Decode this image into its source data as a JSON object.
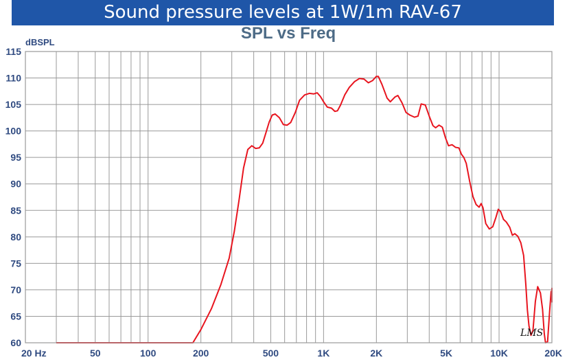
{
  "banner": {
    "title": "Sound pressure levels at 1W/1m RAV-67"
  },
  "chart_data": {
    "type": "line",
    "title": "SPL vs Freq",
    "ylabel": "dBSPL",
    "xlabel": "",
    "xscale": "log",
    "xlim": [
      20,
      20000
    ],
    "ylim": [
      60,
      115
    ],
    "grid": true,
    "x_ticks": [
      {
        "value": 20,
        "label": "20  Hz"
      },
      {
        "value": 50,
        "label": "50"
      },
      {
        "value": 100,
        "label": "100"
      },
      {
        "value": 200,
        "label": "200"
      },
      {
        "value": 500,
        "label": "500"
      },
      {
        "value": 1000,
        "label": "1K"
      },
      {
        "value": 2000,
        "label": "2K"
      },
      {
        "value": 5000,
        "label": "5K"
      },
      {
        "value": 10000,
        "label": "10K"
      },
      {
        "value": 20000,
        "label": "20K"
      }
    ],
    "y_ticks": [
      60,
      65,
      70,
      75,
      80,
      85,
      90,
      95,
      100,
      105,
      110,
      115
    ],
    "line_color": "#e8141e",
    "watermark": "LMS",
    "series": [
      {
        "points": [
          [
            30,
            60
          ],
          [
            100,
            60
          ],
          [
            180,
            60
          ],
          [
            200,
            62.5
          ],
          [
            230,
            66.5
          ],
          [
            260,
            71
          ],
          [
            290,
            76
          ],
          [
            310,
            81
          ],
          [
            330,
            87
          ],
          [
            350,
            93
          ],
          [
            370,
            96.5
          ],
          [
            390,
            97.2
          ],
          [
            410,
            96.7
          ],
          [
            430,
            96.8
          ],
          [
            450,
            97.7
          ],
          [
            470,
            99.7
          ],
          [
            490,
            101.7
          ],
          [
            510,
            103
          ],
          [
            530,
            103.2
          ],
          [
            560,
            102.5
          ],
          [
            590,
            101.2
          ],
          [
            620,
            101.1
          ],
          [
            650,
            101.6
          ],
          [
            690,
            103.5
          ],
          [
            730,
            105.8
          ],
          [
            780,
            106.8
          ],
          [
            830,
            107.1
          ],
          [
            880,
            107
          ],
          [
            920,
            107.2
          ],
          [
            960,
            106.5
          ],
          [
            1000,
            105.5
          ],
          [
            1050,
            104.5
          ],
          [
            1110,
            104.3
          ],
          [
            1160,
            103.7
          ],
          [
            1200,
            103.8
          ],
          [
            1250,
            104.9
          ],
          [
            1320,
            106.8
          ],
          [
            1400,
            108.2
          ],
          [
            1500,
            109.3
          ],
          [
            1600,
            109.9
          ],
          [
            1700,
            109.8
          ],
          [
            1800,
            109.1
          ],
          [
            1900,
            109.5
          ],
          [
            2000,
            110.3
          ],
          [
            2050,
            110.3
          ],
          [
            2150,
            108.8
          ],
          [
            2300,
            106.2
          ],
          [
            2400,
            105.5
          ],
          [
            2550,
            106.4
          ],
          [
            2650,
            106.7
          ],
          [
            2800,
            105.3
          ],
          [
            2950,
            103.5
          ],
          [
            3100,
            103
          ],
          [
            3300,
            102.6
          ],
          [
            3450,
            102.8
          ],
          [
            3600,
            105.1
          ],
          [
            3800,
            104.9
          ],
          [
            4000,
            102.8
          ],
          [
            4200,
            101
          ],
          [
            4350,
            100.6
          ],
          [
            4550,
            101.1
          ],
          [
            4750,
            100.7
          ],
          [
            4950,
            98.7
          ],
          [
            5150,
            97.2
          ],
          [
            5400,
            97.4
          ],
          [
            5650,
            96.9
          ],
          [
            5900,
            96.8
          ],
          [
            6100,
            95.6
          ],
          [
            6300,
            95
          ],
          [
            6500,
            93.9
          ],
          [
            6800,
            90.5
          ],
          [
            7100,
            87.6
          ],
          [
            7400,
            86.1
          ],
          [
            7700,
            85.6
          ],
          [
            7900,
            86.3
          ],
          [
            8100,
            85.5
          ],
          [
            8400,
            82.5
          ],
          [
            8800,
            81.5
          ],
          [
            9200,
            81.9
          ],
          [
            9600,
            83.7
          ],
          [
            9900,
            85.2
          ],
          [
            10200,
            84.8
          ],
          [
            10600,
            83.3
          ],
          [
            11000,
            82.8
          ],
          [
            11500,
            81.8
          ],
          [
            11900,
            80.3
          ],
          [
            12300,
            80.6
          ],
          [
            12800,
            80.1
          ],
          [
            13300,
            78.9
          ],
          [
            13800,
            76.5
          ],
          [
            14200,
            71
          ],
          [
            14500,
            66.2
          ],
          [
            14800,
            63.2
          ],
          [
            15200,
            61.4
          ],
          [
            15600,
            62.3
          ],
          [
            16100,
            67.8
          ],
          [
            16600,
            70.6
          ],
          [
            17200,
            69.4
          ],
          [
            17700,
            66.3
          ],
          [
            18100,
            61.7
          ],
          [
            18400,
            60
          ],
          [
            18900,
            60.2
          ],
          [
            19400,
            65.8
          ],
          [
            19800,
            69.7
          ],
          [
            20200,
            69.4
          ],
          [
            20600,
            70.3
          ],
          [
            21000,
            67.6
          ]
        ]
      }
    ]
  }
}
